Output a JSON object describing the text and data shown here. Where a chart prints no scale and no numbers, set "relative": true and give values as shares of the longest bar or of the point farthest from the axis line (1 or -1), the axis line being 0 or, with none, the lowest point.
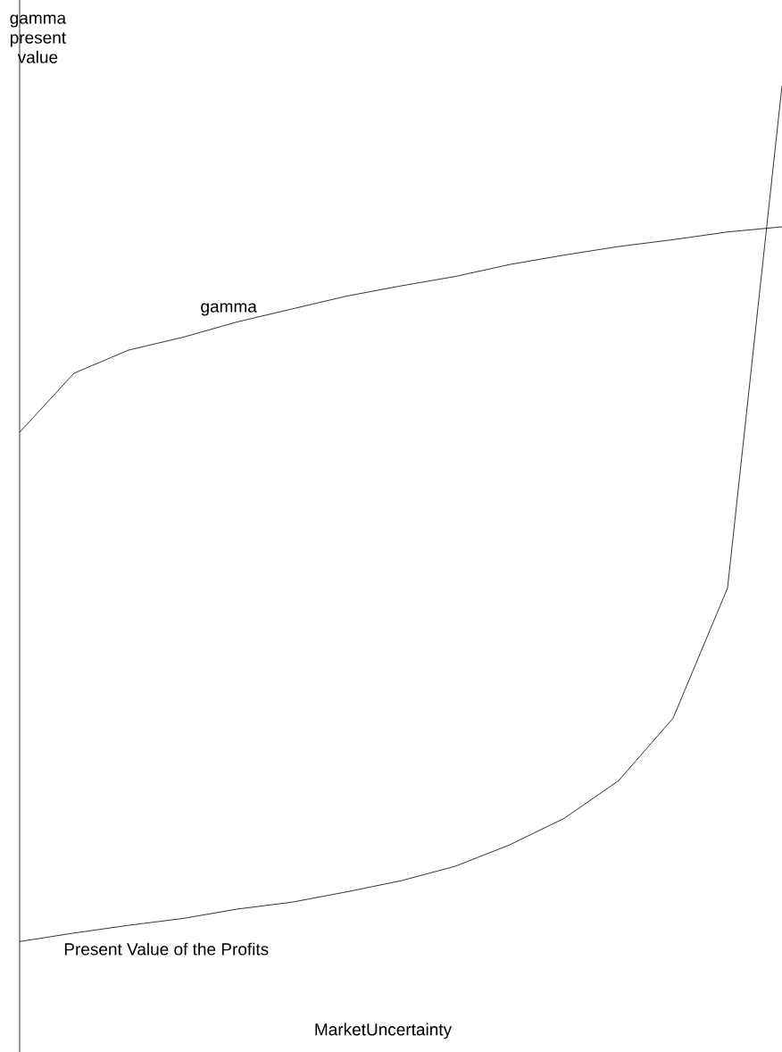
{
  "chart_data": {
    "type": "line",
    "relative": true,
    "xlabel": "MarketUncertainty",
    "ylabel": "gamma present value",
    "marker": "none",
    "categories": [
      null,
      null,
      null,
      null,
      null,
      null,
      null,
      null,
      null,
      null,
      null,
      null,
      null,
      null,
      null
    ],
    "series": [
      {
        "name": "gamma",
        "color": "#000000",
        "values": [
          0.595,
          0.664,
          0.691,
          0.706,
          0.724,
          0.739,
          0.754,
          0.766,
          0.777,
          0.791,
          0.802,
          0.812,
          0.82,
          0.829,
          0.835
        ]
      },
      {
        "name": "Present Value of the Profits",
        "color": "#000000",
        "values": [
          0,
          0.01,
          0.019,
          0.027,
          0.038,
          0.046,
          0.058,
          0.071,
          0.088,
          0.113,
          0.144,
          0.188,
          0.261,
          0.413,
          1
        ]
      }
    ]
  }
}
